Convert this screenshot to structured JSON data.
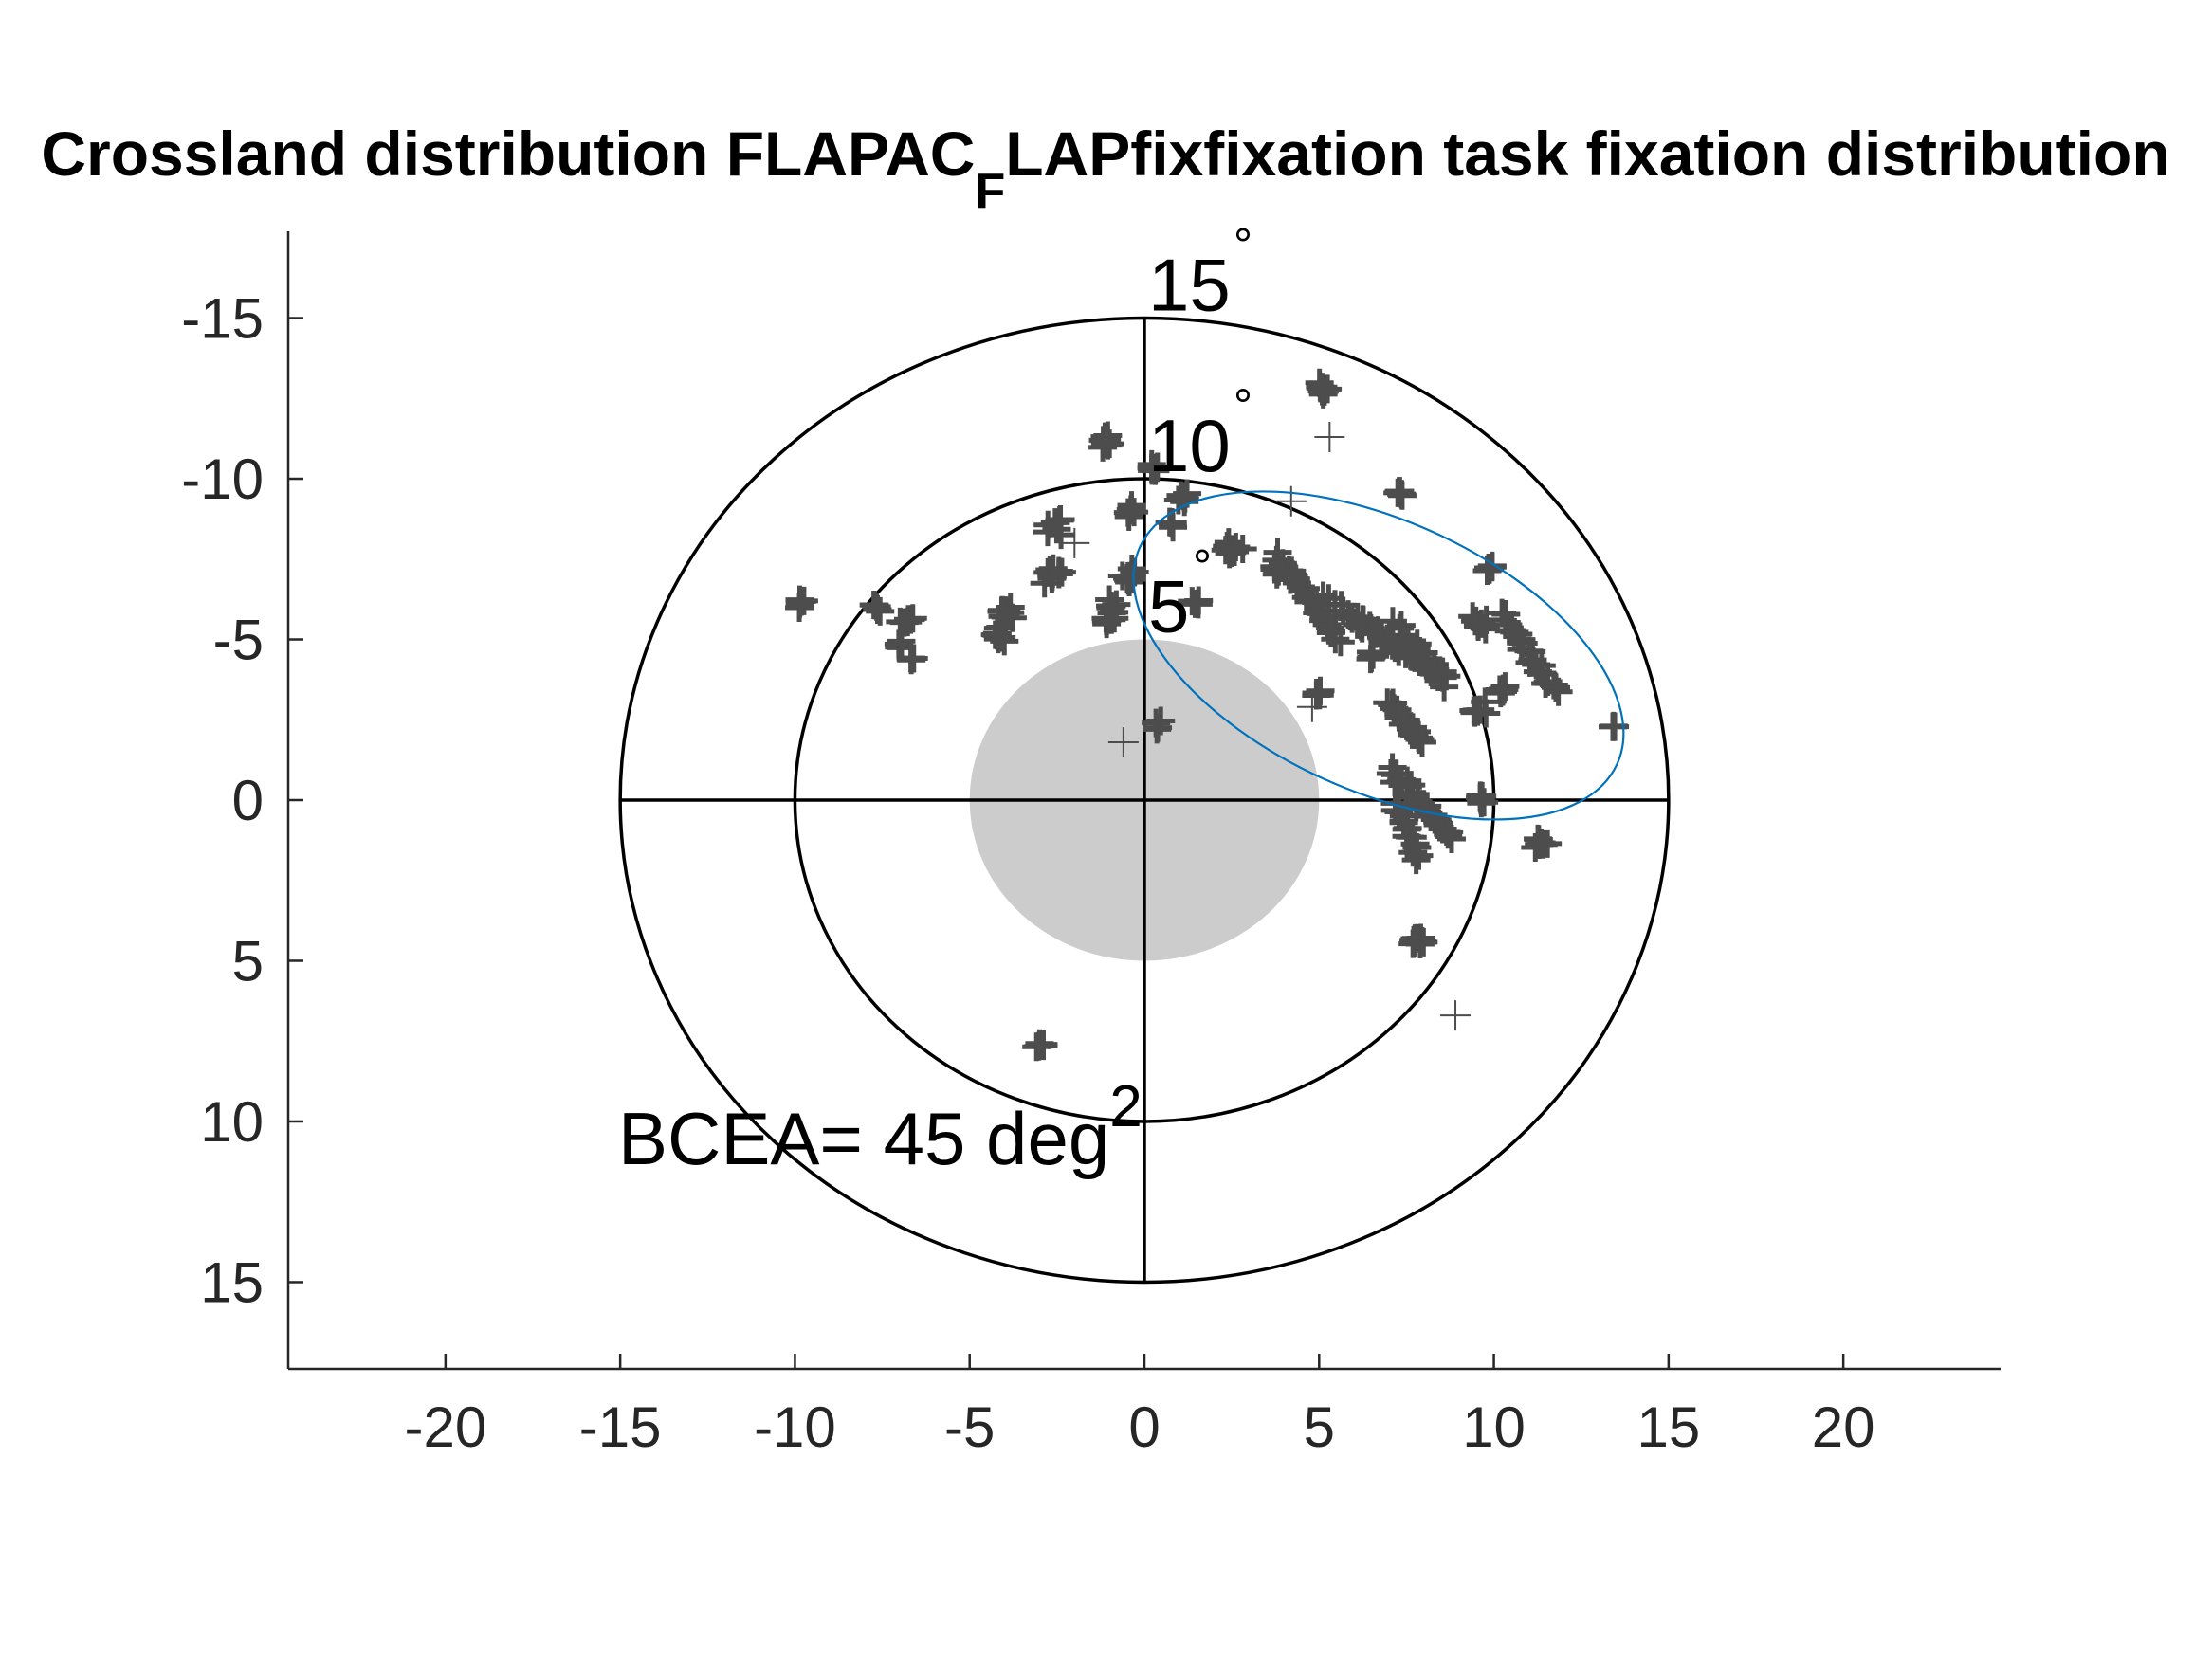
{
  "chart_data": {
    "type": "scatter",
    "title_parts": {
      "main": "Crossland distribution FLAPAC",
      "subscript": "F",
      "rest": "LAPfixfixation task fixation distribution"
    },
    "x_ticks": [
      "-20",
      "-15",
      "-10",
      "-5",
      "0",
      "5",
      "10",
      "15",
      "20"
    ],
    "x_tick_values": [
      -20,
      -15,
      -10,
      -5,
      0,
      5,
      10,
      15,
      20
    ],
    "y_ticks": [
      "-15",
      "-10",
      "-5",
      "0",
      "5",
      "10",
      "15"
    ],
    "y_tick_values": [
      -15,
      -10,
      -5,
      0,
      5,
      10,
      15
    ],
    "xlim": [
      -24.5,
      24.5
    ],
    "ylim": [
      -17.7,
      17.7
    ],
    "y_axis_reversed": true,
    "rings": [
      {
        "radius": 15,
        "label": "15",
        "degree_symbol": "°"
      },
      {
        "radius": 10,
        "label": "10",
        "degree_symbol": "°"
      },
      {
        "radius": 5,
        "label": "5",
        "degree_symbol": "°"
      }
    ],
    "scotoma": {
      "center": [
        0,
        0
      ],
      "radius": 5,
      "color": "#cccccc"
    },
    "bcea": {
      "text": "BCEA= 45 deg",
      "superscript": "2",
      "ellipse": {
        "center_x": 6.7,
        "center_y": -4.5,
        "semi_major": 7.5,
        "semi_minor": 4.2,
        "rotation_deg": 24.5,
        "color": "#0072bd"
      }
    },
    "marker": "+",
    "marker_color": "#4d4d4d",
    "clusters": [
      {
        "x": 5.1,
        "y": -12.8,
        "n": 12,
        "spread": 0.3
      },
      {
        "x": -1.1,
        "y": -11.2,
        "n": 14,
        "spread": 0.3
      },
      {
        "x": 0.3,
        "y": -10.3,
        "n": 8,
        "spread": 0.25
      },
      {
        "x": 7.3,
        "y": -9.6,
        "n": 6,
        "spread": 0.25
      },
      {
        "x": 1.1,
        "y": -9.4,
        "n": 6,
        "spread": 0.2
      },
      {
        "x": -0.4,
        "y": -9.0,
        "n": 6,
        "spread": 0.25
      },
      {
        "x": 0.7,
        "y": -8.6,
        "n": 4,
        "spread": 0.2
      },
      {
        "x": -2.5,
        "y": -8.5,
        "n": 8,
        "spread": 0.35
      },
      {
        "x": 2.5,
        "y": -7.8,
        "n": 10,
        "spread": 0.35
      },
      {
        "x": -2.6,
        "y": -7.0,
        "n": 12,
        "spread": 0.4
      },
      {
        "x": -0.4,
        "y": -7.0,
        "n": 10,
        "spread": 0.35
      },
      {
        "x": 9.9,
        "y": -7.3,
        "n": 5,
        "spread": 0.2
      },
      {
        "x": 3.8,
        "y": -7.2,
        "n": 6,
        "spread": 0.25
      },
      {
        "x": -1.0,
        "y": -6.0,
        "n": 6,
        "spread": 0.3
      },
      {
        "x": -4.0,
        "y": -5.8,
        "n": 10,
        "spread": 0.3
      },
      {
        "x": -4.1,
        "y": -5.1,
        "n": 8,
        "spread": 0.3
      },
      {
        "x": -1.0,
        "y": -5.6,
        "n": 8,
        "spread": 0.3
      },
      {
        "x": 1.4,
        "y": -6.1,
        "n": 4,
        "spread": 0.2
      },
      {
        "x": -9.8,
        "y": -6.1,
        "n": 5,
        "spread": 0.2
      },
      {
        "x": -7.7,
        "y": -6.0,
        "n": 5,
        "spread": 0.2
      },
      {
        "x": -6.8,
        "y": -5.6,
        "n": 6,
        "spread": 0.25
      },
      {
        "x": -7.0,
        "y": -4.8,
        "n": 4,
        "spread": 0.25
      },
      {
        "x": -6.7,
        "y": -4.4,
        "n": 4,
        "spread": 0.2
      },
      {
        "x": 6.5,
        "y": -4.5,
        "n": 5,
        "spread": 0.2
      },
      {
        "x": 9.6,
        "y": -5.5,
        "n": 8,
        "spread": 0.35
      },
      {
        "x": 10.2,
        "y": -3.4,
        "n": 6,
        "spread": 0.25
      },
      {
        "x": 9.6,
        "y": -2.8,
        "n": 8,
        "spread": 0.3
      },
      {
        "x": 5.0,
        "y": -3.3,
        "n": 5,
        "spread": 0.2
      },
      {
        "x": 13.4,
        "y": -2.3,
        "n": 4,
        "spread": 0.2
      },
      {
        "x": 0.4,
        "y": -2.3,
        "n": 4,
        "spread": 0.2
      },
      {
        "x": -0.6,
        "y": -1.8,
        "n": 1,
        "spread": 0
      },
      {
        "x": 9.7,
        "y": 0.0,
        "n": 6,
        "spread": 0.25
      },
      {
        "x": 11.3,
        "y": 1.3,
        "n": 8,
        "spread": 0.3
      },
      {
        "x": 7.8,
        "y": 4.4,
        "n": 10,
        "spread": 0.3
      },
      {
        "x": -3.0,
        "y": 7.6,
        "n": 6,
        "spread": 0.2
      },
      {
        "x": 5.3,
        "y": -11.3,
        "n": 1,
        "spread": 0
      },
      {
        "x": 8.9,
        "y": 6.7,
        "n": 1,
        "spread": 0
      },
      {
        "x": 4.2,
        "y": -9.3,
        "n": 1,
        "spread": 0
      },
      {
        "x": -2.0,
        "y": -8.0,
        "n": 1,
        "spread": 0
      },
      {
        "x": 4.8,
        "y": -2.9,
        "n": 1,
        "spread": 0
      }
    ],
    "streaks": [
      {
        "x1": 3.8,
        "y1": -7.6,
        "x2": 5.6,
        "y2": -5.0,
        "n": 28
      },
      {
        "x1": 6.0,
        "y1": -5.6,
        "x2": 8.6,
        "y2": -3.8,
        "n": 28
      },
      {
        "x1": 7.2,
        "y1": -5.6,
        "x2": 8.6,
        "y2": -3.6,
        "n": 14
      },
      {
        "x1": 10.2,
        "y1": -5.8,
        "x2": 11.8,
        "y2": -3.4,
        "n": 24
      },
      {
        "x1": 7.0,
        "y1": -3.0,
        "x2": 8.0,
        "y2": -1.8,
        "n": 18
      },
      {
        "x1": 7.0,
        "y1": -1.0,
        "x2": 8.8,
        "y2": 1.2,
        "n": 30
      },
      {
        "x1": 7.2,
        "y1": 0.0,
        "x2": 7.8,
        "y2": 1.8,
        "n": 18
      },
      {
        "x1": 5.2,
        "y1": -6.4,
        "x2": 6.4,
        "y2": -5.4,
        "n": 10
      }
    ]
  }
}
